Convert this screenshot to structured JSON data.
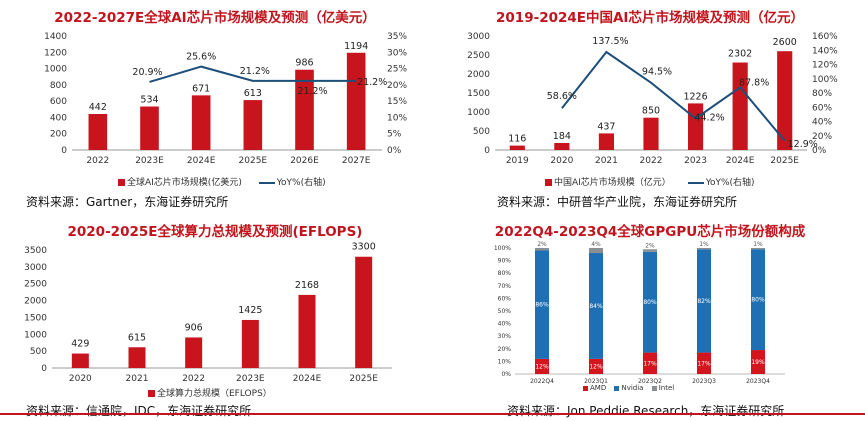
{
  "colors": {
    "red": "#c8141c",
    "blue": "#1d4f7a",
    "amd": "#d4151d",
    "nvidia": "#1f6fb5",
    "intel": "#8a8f94",
    "title": "#c2141d"
  },
  "panel1": {
    "title": "2022-2027E全球AI芯片市场规模及预测（亿美元）",
    "legend_bar": "全球AI芯片市场规模(亿美元)",
    "legend_line": "YoY%(右轴)",
    "source": "资料来源：Gartner，东海证券研究所"
  },
  "panel2": {
    "title": "2019-2024E中国AI芯片市场规模及预测（亿元）",
    "legend_bar": "中国AI芯片市场规模（亿元）",
    "legend_line": "YoY%(右轴)",
    "source": "资料来源：中研普华产业院，东海证券研究所"
  },
  "panel3": {
    "title": "2020-2025E全球算力总规模及预测(EFLOPS)",
    "legend_bar": "全球算力总规模（EFLOPS）",
    "source": "资料来源：信通院，IDC，东海证券研究所"
  },
  "panel4": {
    "title": "2022Q4-2023Q4全球GPGPU芯片市场份额构成",
    "legend": [
      "AMD",
      "Nvidia",
      "Intel"
    ],
    "source": "资料来源：Jon Peddie Research，东海证券研究所"
  },
  "chart_data": [
    {
      "type": "bar",
      "categories": [
        "2022",
        "2023E",
        "2024E",
        "2025E",
        "2026E",
        "2027E"
      ],
      "series": [
        {
          "name": "全球AI芯片市场规模(亿美元)",
          "type": "bar",
          "values": [
            442,
            534,
            671,
            613,
            986,
            1194
          ],
          "labels": [
            "442",
            "534",
            "671",
            "613",
            "986",
            "1194"
          ]
        },
        {
          "name": "YoY%(右轴)",
          "type": "line",
          "axis": "right",
          "values": [
            null,
            20.9,
            25.6,
            21.2,
            21.2,
            21.2
          ],
          "labels": [
            "",
            "20.9%",
            "25.6%",
            "21.2%",
            "21.2%",
            "21.2%"
          ]
        }
      ],
      "ylim": [
        0,
        1400
      ],
      "yticks": [
        "0",
        "200",
        "400",
        "600",
        "800",
        "1000",
        "1200",
        "1400"
      ],
      "y2lim": [
        0,
        35
      ],
      "y2ticks": [
        "0%",
        "5%",
        "10%",
        "15%",
        "20%",
        "25%",
        "30%",
        "35%"
      ]
    },
    {
      "type": "bar",
      "categories": [
        "2019",
        "2020",
        "2021",
        "2022",
        "2023",
        "2024E",
        "2025E"
      ],
      "series": [
        {
          "name": "中国AI芯片市场规模（亿元）",
          "type": "bar",
          "values": [
            116,
            184,
            437,
            850,
            1226,
            2302,
            2600
          ],
          "labels": [
            "116",
            "184",
            "437",
            "850",
            "1226",
            "2302",
            "2600"
          ]
        },
        {
          "name": "YoY%(右轴)",
          "type": "line",
          "axis": "right",
          "values": [
            null,
            58.6,
            137.5,
            94.5,
            44.2,
            87.8,
            12.9
          ],
          "labels": [
            "",
            "58.6%",
            "137.5%",
            "94.5%",
            "44.2%",
            "87.8%",
            "12.9%"
          ]
        }
      ],
      "ylim": [
        0,
        3000
      ],
      "yticks": [
        "0",
        "500",
        "1000",
        "1500",
        "2000",
        "2500",
        "3000"
      ],
      "y2lim": [
        0,
        160
      ],
      "y2ticks": [
        "0%",
        "20%",
        "40%",
        "60%",
        "80%",
        "100%",
        "120%",
        "140%",
        "160%"
      ]
    },
    {
      "type": "bar",
      "categories": [
        "2020",
        "2021",
        "2022",
        "2023E",
        "2024E",
        "2025E"
      ],
      "series": [
        {
          "name": "全球算力总规模（EFLOPS）",
          "type": "bar",
          "values": [
            429,
            615,
            906,
            1425,
            2168,
            3300
          ],
          "labels": [
            "429",
            "615",
            "906",
            "1425",
            "2168",
            "3300"
          ]
        }
      ],
      "ylim": [
        0,
        3500
      ],
      "yticks": [
        "0",
        "500",
        "1000",
        "1500",
        "2000",
        "2500",
        "3000",
        "3500"
      ]
    },
    {
      "type": "bar",
      "stacked": true,
      "categories": [
        "2022Q4",
        "2023Q1",
        "2023Q2",
        "2023Q3",
        "2023Q4"
      ],
      "series": [
        {
          "name": "AMD",
          "values": [
            12,
            12,
            17,
            17,
            19
          ],
          "labels": [
            "12%",
            "12%",
            "17%",
            "17%",
            "19%"
          ]
        },
        {
          "name": "Nvidia",
          "values": [
            86,
            84,
            80,
            82,
            80
          ],
          "labels": [
            "86%",
            "84%",
            "80%",
            "82%",
            "80%"
          ]
        },
        {
          "name": "Intel",
          "values": [
            2,
            4,
            2,
            1,
            1
          ],
          "labels": [
            "2%",
            "4%",
            "2%",
            "1%",
            "1%"
          ]
        }
      ],
      "ylim": [
        0,
        100
      ],
      "yticks": [
        "0%",
        "10%",
        "20%",
        "30%",
        "40%",
        "50%",
        "60%",
        "70%",
        "80%",
        "90%",
        "100%"
      ]
    }
  ]
}
